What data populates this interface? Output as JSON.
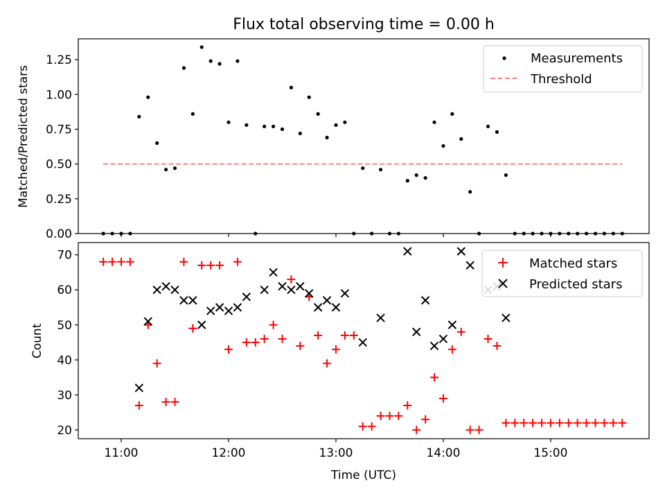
{
  "chart_data": [
    {
      "type": "scatter",
      "title": "Flux total observing time = 0.00 h",
      "xlabel": "",
      "ylabel": "Matched/Predicted stars",
      "xlim": [
        "10:36",
        "15:55"
      ],
      "ylim": [
        0,
        1.4
      ],
      "yticks": [
        "0.00",
        "0.25",
        "0.50",
        "0.75",
        "1.00",
        "1.25"
      ],
      "xticks": [
        "11:00",
        "12:00",
        "13:00",
        "14:00",
        "15:00"
      ],
      "legend": {
        "position": "top-right",
        "entries": [
          "Measurements",
          "Threshold"
        ]
      },
      "threshold": {
        "name": "Threshold",
        "y": 0.5,
        "x_range": [
          "10:50",
          "15:40"
        ],
        "color": "#ff7f7f"
      },
      "series": [
        {
          "name": "Measurements",
          "color": "#000000",
          "points": [
            [
              "10:50",
              0.0
            ],
            [
              "10:55",
              0.0
            ],
            [
              "11:00",
              0.0
            ],
            [
              "11:05",
              0.0
            ],
            [
              "11:10",
              0.84
            ],
            [
              "11:15",
              0.98
            ],
            [
              "11:20",
              0.65
            ],
            [
              "11:25",
              0.46
            ],
            [
              "11:30",
              0.47
            ],
            [
              "11:35",
              1.19
            ],
            [
              "11:40",
              0.86
            ],
            [
              "11:45",
              1.34
            ],
            [
              "11:50",
              1.24
            ],
            [
              "11:55",
              1.22
            ],
            [
              "12:00",
              0.8
            ],
            [
              "12:05",
              1.24
            ],
            [
              "12:10",
              0.78
            ],
            [
              "12:15",
              0.0
            ],
            [
              "12:20",
              0.77
            ],
            [
              "12:25",
              0.77
            ],
            [
              "12:30",
              0.75
            ],
            [
              "12:35",
              1.05
            ],
            [
              "12:40",
              0.72
            ],
            [
              "12:45",
              0.98
            ],
            [
              "12:50",
              0.86
            ],
            [
              "12:55",
              0.69
            ],
            [
              "13:00",
              0.78
            ],
            [
              "13:05",
              0.8
            ],
            [
              "13:10",
              0.0
            ],
            [
              "13:15",
              0.47
            ],
            [
              "13:20",
              0.0
            ],
            [
              "13:25",
              0.46
            ],
            [
              "13:30",
              0.0
            ],
            [
              "13:35",
              0.0
            ],
            [
              "13:40",
              0.38
            ],
            [
              "13:45",
              0.42
            ],
            [
              "13:50",
              0.4
            ],
            [
              "13:55",
              0.8
            ],
            [
              "14:00",
              0.63
            ],
            [
              "14:05",
              0.86
            ],
            [
              "14:10",
              0.68
            ],
            [
              "14:15",
              0.3
            ],
            [
              "14:20",
              0.0
            ],
            [
              "14:25",
              0.77
            ],
            [
              "14:30",
              0.73
            ],
            [
              "14:35",
              0.42
            ],
            [
              "14:40",
              0.0
            ],
            [
              "14:45",
              0.0
            ],
            [
              "14:50",
              0.0
            ],
            [
              "14:55",
              0.0
            ],
            [
              "15:00",
              0.0
            ],
            [
              "15:05",
              0.0
            ],
            [
              "15:10",
              0.0
            ],
            [
              "15:15",
              0.0
            ],
            [
              "15:20",
              0.0
            ],
            [
              "15:25",
              0.0
            ],
            [
              "15:30",
              0.0
            ],
            [
              "15:35",
              0.0
            ],
            [
              "15:40",
              0.0
            ]
          ]
        }
      ]
    },
    {
      "type": "scatter",
      "title": "",
      "xlabel": "Time (UTC)",
      "ylabel": "Count",
      "xlim": [
        "10:36",
        "15:55"
      ],
      "ylim": [
        17.5,
        73.5
      ],
      "yticks": [
        "20",
        "30",
        "40",
        "50",
        "60",
        "70"
      ],
      "xticks": [
        "11:00",
        "12:00",
        "13:00",
        "14:00",
        "15:00"
      ],
      "legend": {
        "position": "top-right",
        "entries": [
          "Matched stars",
          "Predicted stars"
        ]
      },
      "series": [
        {
          "name": "Matched stars",
          "marker": "plus",
          "color": "#ff0000",
          "points": [
            [
              "10:50",
              68
            ],
            [
              "10:55",
              68
            ],
            [
              "11:00",
              68
            ],
            [
              "11:05",
              68
            ],
            [
              "11:10",
              27
            ],
            [
              "11:15",
              50
            ],
            [
              "11:20",
              39
            ],
            [
              "11:25",
              28
            ],
            [
              "11:30",
              28
            ],
            [
              "11:35",
              68
            ],
            [
              "11:40",
              49
            ],
            [
              "11:45",
              67
            ],
            [
              "11:50",
              67
            ],
            [
              "11:55",
              67
            ],
            [
              "12:00",
              43
            ],
            [
              "12:05",
              68
            ],
            [
              "12:10",
              45
            ],
            [
              "12:15",
              45
            ],
            [
              "12:20",
              46
            ],
            [
              "12:25",
              50
            ],
            [
              "12:30",
              46
            ],
            [
              "12:35",
              63
            ],
            [
              "12:40",
              44
            ],
            [
              "12:45",
              58
            ],
            [
              "12:50",
              47
            ],
            [
              "12:55",
              39
            ],
            [
              "13:00",
              43
            ],
            [
              "13:05",
              47
            ],
            [
              "13:10",
              47
            ],
            [
              "13:15",
              21
            ],
            [
              "13:20",
              21
            ],
            [
              "13:25",
              24
            ],
            [
              "13:30",
              24
            ],
            [
              "13:35",
              24
            ],
            [
              "13:40",
              27
            ],
            [
              "13:45",
              20
            ],
            [
              "13:50",
              23
            ],
            [
              "13:55",
              35
            ],
            [
              "14:00",
              29
            ],
            [
              "14:05",
              43
            ],
            [
              "14:10",
              48
            ],
            [
              "14:15",
              20
            ],
            [
              "14:20",
              20
            ],
            [
              "14:25",
              46
            ],
            [
              "14:30",
              44
            ],
            [
              "14:35",
              22
            ],
            [
              "14:40",
              22
            ],
            [
              "14:45",
              22
            ],
            [
              "14:50",
              22
            ],
            [
              "14:55",
              22
            ],
            [
              "15:00",
              22
            ],
            [
              "15:05",
              22
            ],
            [
              "15:10",
              22
            ],
            [
              "15:15",
              22
            ],
            [
              "15:20",
              22
            ],
            [
              "15:25",
              22
            ],
            [
              "15:30",
              22
            ],
            [
              "15:35",
              22
            ],
            [
              "15:40",
              22
            ]
          ]
        },
        {
          "name": "Predicted stars",
          "marker": "x",
          "color": "#000000",
          "points": [
            [
              "11:10",
              32
            ],
            [
              "11:15",
              51
            ],
            [
              "11:20",
              60
            ],
            [
              "11:25",
              61
            ],
            [
              "11:30",
              60
            ],
            [
              "11:35",
              57
            ],
            [
              "11:40",
              57
            ],
            [
              "11:45",
              50
            ],
            [
              "11:50",
              54
            ],
            [
              "11:55",
              55
            ],
            [
              "12:00",
              54
            ],
            [
              "12:05",
              55
            ],
            [
              "12:10",
              58
            ],
            [
              "12:20",
              60
            ],
            [
              "12:25",
              65
            ],
            [
              "12:30",
              61
            ],
            [
              "12:35",
              60
            ],
            [
              "12:40",
              61
            ],
            [
              "12:45",
              59
            ],
            [
              "12:50",
              55
            ],
            [
              "12:55",
              57
            ],
            [
              "13:00",
              55
            ],
            [
              "13:05",
              59
            ],
            [
              "13:15",
              45
            ],
            [
              "13:25",
              52
            ],
            [
              "13:40",
              71
            ],
            [
              "13:45",
              48
            ],
            [
              "13:50",
              57
            ],
            [
              "13:55",
              44
            ],
            [
              "14:00",
              46
            ],
            [
              "14:05",
              50
            ],
            [
              "14:10",
              71
            ],
            [
              "14:15",
              67
            ],
            [
              "14:25",
              60
            ],
            [
              "14:30",
              61
            ],
            [
              "14:35",
              52
            ]
          ]
        }
      ]
    }
  ]
}
